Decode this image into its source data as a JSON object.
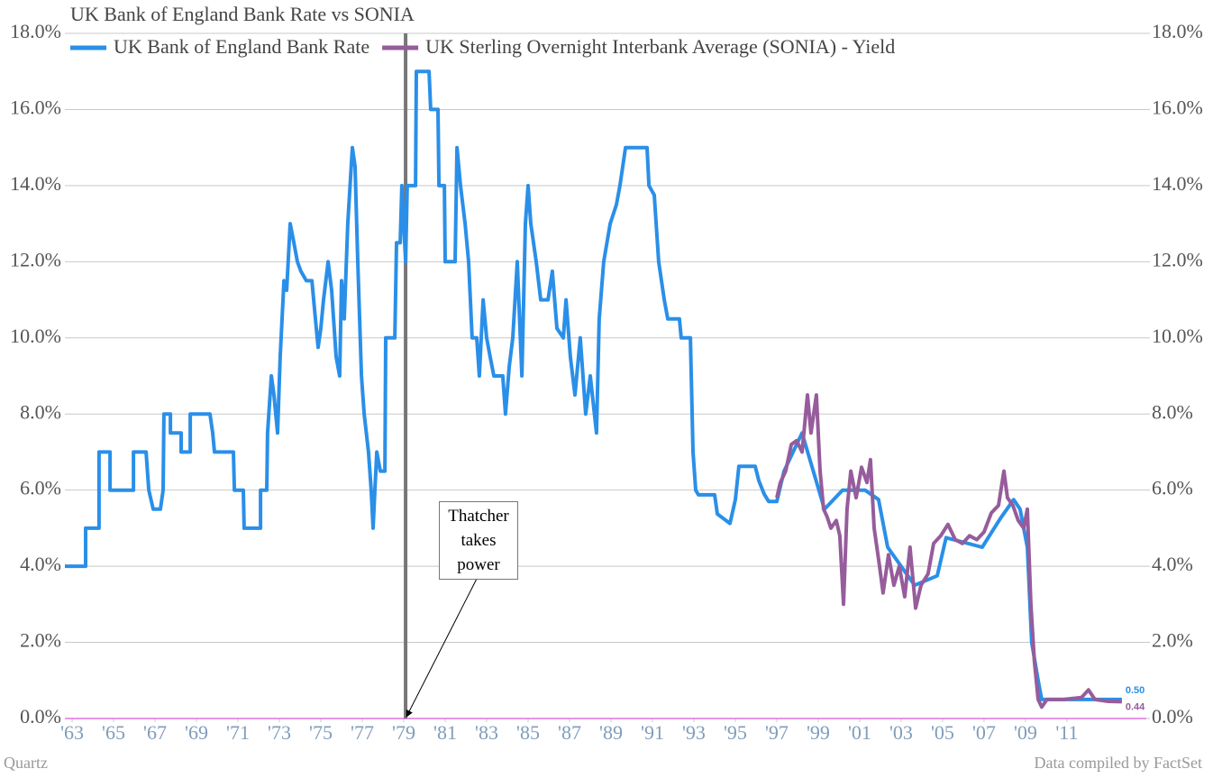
{
  "chart_data": {
    "type": "line",
    "title": "UK Bank of England Bank Rate vs SONIA",
    "source_left": "Quartz",
    "source_right": "Data compiled by FactSet",
    "annotation": {
      "text": "Thatcher takes power",
      "x": 1979.09
    },
    "xlim": [
      1962.65,
      2014.83
    ],
    "xticks": [
      {
        "value": 1963,
        "label": "'63"
      },
      {
        "value": 1965,
        "label": "'65"
      },
      {
        "value": 1967,
        "label": "'67"
      },
      {
        "value": 1969,
        "label": "'69"
      },
      {
        "value": 1971,
        "label": "'71"
      },
      {
        "value": 1973,
        "label": "'73"
      },
      {
        "value": 1975,
        "label": "'75"
      },
      {
        "value": 1977,
        "label": "'77"
      },
      {
        "value": 1979,
        "label": "'79"
      },
      {
        "value": 1981,
        "label": "'81"
      },
      {
        "value": 1983,
        "label": "'83"
      },
      {
        "value": 1985,
        "label": "'85"
      },
      {
        "value": 1987,
        "label": "'87"
      },
      {
        "value": 1989,
        "label": "'89"
      },
      {
        "value": 1991,
        "label": "'91"
      },
      {
        "value": 1993,
        "label": "'93"
      },
      {
        "value": 1995,
        "label": "'95"
      },
      {
        "value": 1997,
        "label": "'97"
      },
      {
        "value": 1999,
        "label": "'99"
      },
      {
        "value": 2001,
        "label": "'01"
      },
      {
        "value": 2003,
        "label": "'03"
      },
      {
        "value": 2005,
        "label": "'05"
      },
      {
        "value": 2007,
        "label": "'07"
      },
      {
        "value": 2009,
        "label": "'09"
      },
      {
        "value": 2011,
        "label": "'11"
      }
    ],
    "ylim": [
      0,
      18
    ],
    "yticks": [
      {
        "value": 0,
        "label": "0.0%"
      },
      {
        "value": 2,
        "label": "2.0%"
      },
      {
        "value": 4,
        "label": "4.0%"
      },
      {
        "value": 6,
        "label": "6.0%"
      },
      {
        "value": 8,
        "label": "8.0%"
      },
      {
        "value": 10,
        "label": "10.0%"
      },
      {
        "value": 12,
        "label": "12.0%"
      },
      {
        "value": 14,
        "label": "14.0%"
      },
      {
        "value": 16,
        "label": "16.0%"
      },
      {
        "value": 18,
        "label": "18.0%"
      }
    ],
    "y2lim": [
      0,
      18
    ],
    "y2ticks": [
      {
        "value": 0,
        "label": "0.0%"
      },
      {
        "value": 2,
        "label": "2.0%"
      },
      {
        "value": 4,
        "label": "4.0%"
      },
      {
        "value": 6,
        "label": "6.0%"
      },
      {
        "value": 8,
        "label": "8.0%"
      },
      {
        "value": 10,
        "label": "10.0%"
      },
      {
        "value": 12,
        "label": "12.0%"
      },
      {
        "value": 14,
        "label": "14.0%"
      },
      {
        "value": 16,
        "label": "16.0%"
      },
      {
        "value": 18,
        "label": "18.0%"
      }
    ],
    "grid": true,
    "series": [
      {
        "name": "UK Bank of England Bank Rate",
        "color": "#2a8fe8",
        "end_label": "0.50",
        "x": [
          1962.65,
          1963.65,
          1963.65,
          1964.3,
          1964.3,
          1964.83,
          1964.83,
          1965.96,
          1965.96,
          1966.57,
          1966.7,
          1966.91,
          1967.26,
          1967.39,
          1967.43,
          1967.74,
          1967.74,
          1968.26,
          1968.26,
          1968.7,
          1968.7,
          1969.65,
          1969.78,
          1969.87,
          1970.78,
          1970.83,
          1971.26,
          1971.3,
          1972.09,
          1972.09,
          1972.39,
          1972.43,
          1972.61,
          1972.74,
          1972.91,
          1973.04,
          1973.22,
          1973.35,
          1973.52,
          1973.7,
          1973.87,
          1974.04,
          1974.3,
          1974.57,
          1974.74,
          1974.87,
          1975.0,
          1975.13,
          1975.35,
          1975.52,
          1975.74,
          1975.91,
          1976.0,
          1976.13,
          1976.3,
          1976.52,
          1976.65,
          1976.78,
          1976.96,
          1977.09,
          1977.3,
          1977.43,
          1977.52,
          1977.61,
          1977.7,
          1977.87,
          1978.09,
          1978.13,
          1978.57,
          1978.65,
          1978.83,
          1978.91,
          1979.09,
          1979.17,
          1979.57,
          1979.61,
          1980.22,
          1980.3,
          1980.65,
          1980.7,
          1980.96,
          1981.0,
          1981.48,
          1981.57,
          1981.74,
          1981.96,
          1982.13,
          1982.3,
          1982.52,
          1982.65,
          1982.83,
          1983.0,
          1983.17,
          1983.35,
          1983.78,
          1983.91,
          1984.09,
          1984.26,
          1984.48,
          1984.7,
          1984.87,
          1985.0,
          1985.13,
          1985.39,
          1985.61,
          1985.96,
          1986.17,
          1986.39,
          1986.7,
          1986.83,
          1987.04,
          1987.26,
          1987.52,
          1987.78,
          1988.0,
          1988.3,
          1988.43,
          1988.65,
          1988.96,
          1989.26,
          1989.43,
          1989.7,
          1990.74,
          1990.83,
          1991.09,
          1991.3,
          1991.57,
          1991.74,
          1992.3,
          1992.39,
          1992.83,
          1992.96,
          1993.09,
          1993.22,
          1994.0,
          1994.13,
          1994.74,
          1995.0,
          1995.17,
          1995.96,
          1996.13,
          1996.39,
          1996.61,
          1997.0,
          1997.35,
          1998.22,
          1999.3,
          2000.17,
          2001.26,
          2001.91,
          2002.35,
          2003.0,
          2003.65,
          2004.74,
          2005.17,
          2006.91,
          2007.78,
          2008.43,
          2008.74,
          2009.09,
          2009.3,
          2009.61,
          2009.78,
          2013.65
        ],
        "values": [
          4,
          4,
          5,
          5,
          7,
          7,
          6,
          6,
          7,
          7,
          6,
          5.5,
          5.5,
          6,
          8,
          8,
          7.5,
          7.5,
          7,
          7,
          8,
          8,
          7.5,
          7,
          7,
          6,
          6,
          5,
          5,
          6,
          6,
          7.5,
          9,
          8.5,
          7.5,
          9.5,
          11.5,
          11.25,
          13,
          12.5,
          12,
          11.75,
          11.5,
          11.5,
          10.5,
          9.75,
          10.25,
          11,
          12,
          11.25,
          9.5,
          9,
          11.5,
          10.5,
          13,
          15,
          14.5,
          12,
          9,
          8,
          7,
          6,
          5,
          6,
          7,
          6.5,
          6.5,
          10,
          10,
          12.5,
          12.5,
          14,
          12,
          14,
          14,
          17,
          17,
          16,
          16,
          14,
          14,
          12,
          12,
          15,
          14,
          13,
          12,
          10,
          10,
          9,
          11,
          10,
          9.5,
          9,
          9,
          8,
          9.25,
          10,
          12,
          9,
          13,
          14,
          13,
          12,
          11,
          11,
          11.75,
          10.25,
          10,
          11,
          9.5,
          8.5,
          10,
          8,
          9,
          7.5,
          10.5,
          12,
          13,
          13.5,
          14,
          15,
          15,
          14,
          13.75,
          12,
          11,
          10.5,
          10.5,
          10,
          10,
          7,
          6,
          5.875,
          5.875,
          5.375,
          5.125,
          5.75,
          6.625,
          6.625,
          6.25,
          5.9,
          5.7,
          5.7,
          6.5,
          7.5,
          5.5,
          6,
          6,
          5.75,
          4.5,
          4,
          3.5,
          3.75,
          4.75,
          4.5,
          5.25,
          5.75,
          5.5,
          4.5,
          2,
          1,
          0.5,
          0.5
        ]
      },
      {
        "name": "UK Sterling Overnight Interbank Average (SONIA) - Yield",
        "color": "#965c9b",
        "end_label": "0.44",
        "x": [
          1997.0,
          1997.17,
          1997.43,
          1997.7,
          1997.96,
          1998.22,
          1998.48,
          1998.65,
          1998.91,
          1999.09,
          1999.26,
          1999.43,
          1999.61,
          1999.87,
          2000.04,
          2000.22,
          2000.39,
          2000.57,
          2000.83,
          2001.09,
          2001.35,
          2001.52,
          2001.7,
          2001.96,
          2002.13,
          2002.39,
          2002.65,
          2002.91,
          2003.17,
          2003.43,
          2003.7,
          2003.96,
          2004.3,
          2004.57,
          2004.91,
          2005.26,
          2005.61,
          2005.96,
          2006.3,
          2006.65,
          2007.0,
          2007.35,
          2007.7,
          2007.96,
          2008.13,
          2008.39,
          2008.65,
          2008.91,
          2009.09,
          2009.26,
          2009.43,
          2009.61,
          2009.78,
          2010.04,
          2010.83,
          2011.7,
          2012.04,
          2012.35,
          2013.0,
          2013.65
        ],
        "values": [
          5.8,
          6.2,
          6.5,
          7.2,
          7.3,
          7,
          8.5,
          7.5,
          8.5,
          6.5,
          5.5,
          5.3,
          5,
          5.2,
          4.8,
          3,
          5.5,
          6.5,
          5.8,
          6.6,
          6.2,
          6.8,
          5,
          4,
          3.3,
          4.3,
          3.5,
          4,
          3.2,
          4.5,
          2.9,
          3.5,
          3.8,
          4.6,
          4.8,
          5.1,
          4.7,
          4.6,
          4.8,
          4.7,
          4.9,
          5.4,
          5.6,
          6.5,
          5.8,
          5.6,
          5.2,
          5,
          5.5,
          3,
          1.5,
          0.5,
          0.3,
          0.5,
          0.5,
          0.55,
          0.75,
          0.5,
          0.45,
          0.44
        ]
      }
    ]
  }
}
